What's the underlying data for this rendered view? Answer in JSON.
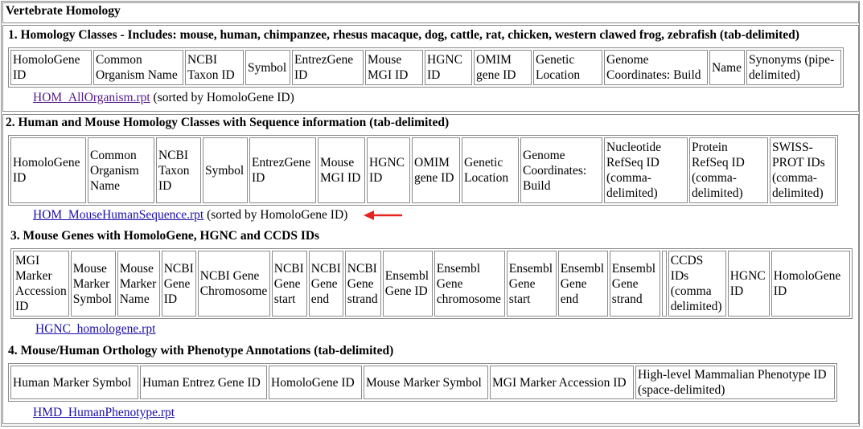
{
  "panel": {
    "title": "Vertebrate Homology"
  },
  "sections": [
    {
      "heading": "1. Homology Classes - Includes: mouse, human, chimpanzee, rhesus macaque, dog, cattle, rat, chicken, western clawed frog, zebrafish (tab-delimited)",
      "columns": [
        "HomoloGene ID",
        "Common Organism Name",
        "NCBI Taxon ID",
        "Symbol",
        "EntrezGene ID",
        "Mouse MGI ID",
        "HGNC ID",
        "OMIM gene ID",
        "Genetic Location",
        "Genome Coordinates: Build",
        "Name",
        "Synonyms (pipe-delimited)"
      ],
      "link": "HOM_AllOrganism.rpt",
      "note": "(sorted by HomoloGene ID)"
    },
    {
      "heading": "2. Human and Mouse Homology Classes with Sequence information (tab-delimited)",
      "columns": [
        "HomoloGene ID",
        "Common Organism Name",
        "NCBI Taxon ID",
        "Symbol",
        "EntrezGene ID",
        "Mouse MGI ID",
        "HGNC ID",
        "OMIM gene ID",
        "Genetic Location",
        "Genome Coordinates: Build",
        "Nucleotide RefSeq ID (comma-delimited)",
        "Protein RefSeq ID (comma-delimited)",
        "SWISS-PROT IDs (comma-delimited)"
      ],
      "link": "HOM_MouseHumanSequence.rpt",
      "note": "(sorted by HomoloGene ID)"
    },
    {
      "heading": "3. Mouse Genes with HomoloGene, HGNC and CCDS IDs",
      "columns": [
        "MGI Marker Accession ID",
        "Mouse Marker Symbol",
        "Mouse Marker Name",
        "NCBI Gene ID",
        "NCBI Gene Chromosome",
        "NCBI Gene start",
        "NCBI Gene end",
        "NCBI Gene strand",
        "Ensembl Gene ID",
        "Ensembl Gene chromosome",
        "Ensembl Gene start",
        "Ensembl Gene end",
        "Ensembl Gene strand",
        "",
        "CCDS IDs (comma delimited)",
        "HGNC ID",
        "HomoloGene ID"
      ],
      "link": "HGNC_homologene.rpt",
      "note": ""
    },
    {
      "heading": "4. Mouse/Human Orthology with Phenotype Annotations (tab-delimited)",
      "columns": [
        "Human Marker Symbol",
        "Human Entrez Gene ID",
        "HomoloGene ID",
        "Mouse Marker Symbol",
        "MGI Marker Accession ID",
        "High-level Mammalian Phenotype ID (space-delimited)"
      ],
      "link": "HMD_HumanPhenotype.rpt",
      "note": ""
    }
  ],
  "annotation": {
    "arrow_icon": "left-arrow-icon",
    "arrow_color": "#e8231f"
  },
  "colors": {
    "border": "#8a8a8a",
    "link": "#1a0dab",
    "visited_link": "#551a8b"
  }
}
